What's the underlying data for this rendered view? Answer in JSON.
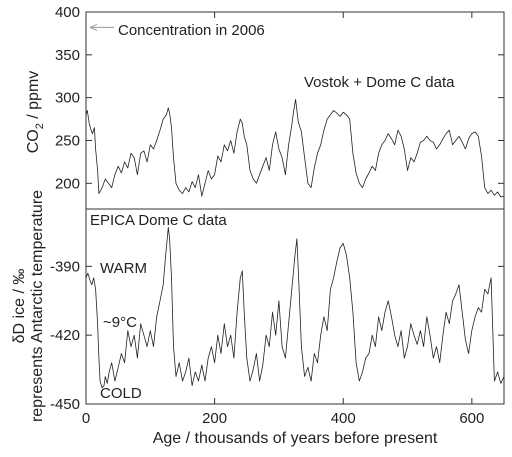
{
  "chart_data": [
    {
      "type": "line",
      "name": "co2-panel",
      "ylabel": "CO2 / ppmv",
      "ylim": [
        170,
        400
      ],
      "yticks": [
        200,
        250,
        300,
        350,
        400
      ],
      "xlim": [
        0,
        650
      ],
      "annotations": {
        "concentration": "Concentration in 2006",
        "concentration_value": 382,
        "source": "Vostok + Dome C data"
      },
      "series": [
        {
          "x": [
            0,
            2,
            5,
            8,
            10,
            13,
            15,
            18,
            20,
            25,
            30,
            35,
            40,
            45,
            50,
            55,
            60,
            65,
            70,
            75,
            80,
            85,
            90,
            95,
            100,
            105,
            110,
            115,
            120,
            125,
            128,
            130,
            133,
            136,
            140,
            145,
            150,
            155,
            160,
            165,
            170,
            175,
            180,
            185,
            190,
            195,
            200,
            205,
            210,
            215,
            220,
            225,
            230,
            235,
            240,
            243,
            246,
            250,
            255,
            260,
            265,
            270,
            275,
            280,
            285,
            290,
            295,
            300,
            305,
            310,
            315,
            320,
            323,
            326,
            330,
            335,
            340,
            345,
            350,
            355,
            360,
            365,
            370,
            375,
            380,
            385,
            390,
            395,
            400,
            405,
            410,
            415,
            420,
            425,
            430,
            435,
            440,
            445,
            450,
            455,
            460,
            465,
            470,
            475,
            480,
            485,
            490,
            495,
            500,
            505,
            510,
            515,
            520,
            525,
            530,
            535,
            540,
            545,
            550,
            555,
            560,
            565,
            570,
            575,
            580,
            585,
            590,
            595,
            600,
            605,
            610,
            615,
            620,
            625,
            630,
            635,
            640,
            645,
            650
          ],
          "y": [
            280,
            285,
            270,
            262,
            258,
            265,
            240,
            215,
            188,
            195,
            205,
            200,
            195,
            210,
            220,
            212,
            225,
            218,
            235,
            230,
            210,
            235,
            238,
            225,
            245,
            240,
            250,
            262,
            275,
            280,
            288,
            282,
            265,
            230,
            200,
            192,
            188,
            195,
            190,
            202,
            195,
            210,
            185,
            200,
            215,
            205,
            210,
            232,
            225,
            245,
            238,
            250,
            235,
            260,
            275,
            270,
            255,
            245,
            215,
            205,
            200,
            210,
            220,
            230,
            215,
            245,
            260,
            240,
            230,
            210,
            245,
            268,
            285,
            298,
            272,
            260,
            230,
            200,
            195,
            218,
            235,
            245,
            262,
            275,
            280,
            285,
            282,
            278,
            283,
            280,
            275,
            235,
            212,
            200,
            195,
            205,
            212,
            220,
            215,
            235,
            245,
            250,
            258,
            252,
            245,
            262,
            255,
            240,
            215,
            230,
            225,
            235,
            248,
            250,
            255,
            250,
            248,
            240,
            245,
            252,
            258,
            262,
            245,
            250,
            255,
            248,
            240,
            252,
            258,
            260,
            255,
            232,
            195,
            188,
            192,
            186,
            190,
            184,
            185
          ]
        }
      ]
    },
    {
      "type": "line",
      "name": "dD-panel",
      "ylabel_line1": "δD ice / ‰",
      "ylabel_line2": "represents Antarctic temperature",
      "ylim": [
        -450,
        -365
      ],
      "yticks": [
        -390,
        -420,
        -450
      ],
      "xlabel": "Age / thousands of years before present",
      "xlim": [
        0,
        650
      ],
      "xticks": [
        0,
        200,
        400,
        600
      ],
      "annotations": {
        "source": "EPICA Dome C data",
        "warm": "WARM",
        "cold": "COLD",
        "delta": "~9°C"
      },
      "series": [
        {
          "x": [
            0,
            3,
            6,
            9,
            12,
            15,
            18,
            20,
            22,
            25,
            28,
            30,
            33,
            36,
            40,
            45,
            50,
            55,
            60,
            65,
            70,
            75,
            80,
            85,
            90,
            95,
            100,
            105,
            110,
            115,
            120,
            124,
            128,
            130,
            133,
            136,
            140,
            145,
            150,
            155,
            160,
            165,
            170,
            175,
            180,
            185,
            190,
            195,
            200,
            205,
            210,
            215,
            220,
            225,
            230,
            235,
            240,
            243,
            246,
            250,
            255,
            260,
            265,
            270,
            275,
            280,
            285,
            290,
            295,
            300,
            305,
            310,
            315,
            320,
            325,
            328,
            331,
            335,
            340,
            345,
            350,
            355,
            360,
            365,
            370,
            375,
            380,
            385,
            390,
            395,
            400,
            405,
            410,
            415,
            420,
            425,
            430,
            435,
            440,
            445,
            450,
            455,
            460,
            465,
            470,
            475,
            480,
            485,
            490,
            495,
            500,
            505,
            510,
            515,
            520,
            525,
            530,
            535,
            540,
            545,
            550,
            555,
            560,
            565,
            570,
            575,
            580,
            585,
            590,
            595,
            600,
            605,
            610,
            615,
            620,
            625,
            630,
            635,
            640,
            645,
            650
          ],
          "y": [
            -395,
            -393,
            -396,
            -398,
            -395,
            -400,
            -415,
            -430,
            -440,
            -443,
            -442,
            -438,
            -441,
            -436,
            -432,
            -440,
            -434,
            -428,
            -432,
            -418,
            -425,
            -420,
            -430,
            -415,
            -420,
            -425,
            -418,
            -425,
            -412,
            -405,
            -398,
            -385,
            -373,
            -378,
            -395,
            -425,
            -438,
            -432,
            -440,
            -436,
            -430,
            -442,
            -436,
            -440,
            -433,
            -440,
            -430,
            -425,
            -432,
            -420,
            -428,
            -415,
            -425,
            -420,
            -430,
            -410,
            -395,
            -392,
            -410,
            -430,
            -440,
            -435,
            -428,
            -440,
            -433,
            -420,
            -425,
            -410,
            -420,
            -405,
            -425,
            -430,
            -415,
            -400,
            -385,
            -378,
            -398,
            -425,
            -438,
            -434,
            -440,
            -428,
            -432,
            -420,
            -412,
            -418,
            -400,
            -395,
            -388,
            -382,
            -380,
            -385,
            -395,
            -410,
            -432,
            -440,
            -436,
            -430,
            -428,
            -420,
            -425,
            -412,
            -418,
            -410,
            -405,
            -412,
            -420,
            -425,
            -418,
            -430,
            -425,
            -415,
            -420,
            -424,
            -418,
            -425,
            -412,
            -420,
            -430,
            -425,
            -432,
            -420,
            -410,
            -415,
            -405,
            -402,
            -398,
            -410,
            -422,
            -428,
            -418,
            -412,
            -408,
            -410,
            -400,
            -402,
            -395,
            -440,
            -436,
            -441,
            -438
          ]
        }
      ]
    }
  ]
}
